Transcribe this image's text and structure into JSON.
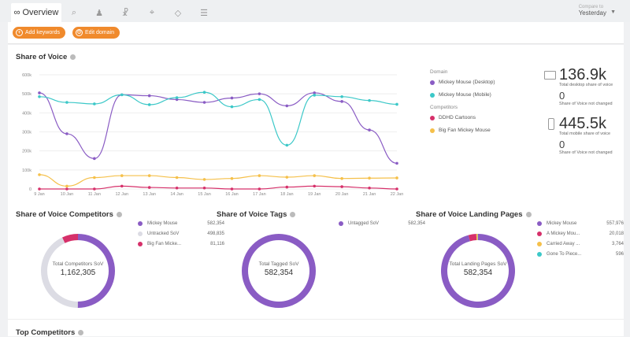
{
  "tabs": [
    {
      "label": "Overview",
      "icon": "binoculars-icon"
    },
    {
      "icon": "search-icon"
    },
    {
      "icon": "chess-pawn-icon"
    },
    {
      "icon": "trophy-icon"
    },
    {
      "icon": "crosshair-icon"
    },
    {
      "icon": "tag-icon"
    },
    {
      "icon": "report-icon"
    }
  ],
  "compare": {
    "label": "Compare to",
    "value": "Yesterday"
  },
  "toolbar": {
    "add_keywords": "Add keywords",
    "edit_domain": "Edit domain"
  },
  "sov": {
    "title": "Share of Voice",
    "legend": {
      "domain_heading": "Domain",
      "competitors_heading": "Competitors"
    },
    "stats": {
      "desktop_value": "136.9k",
      "desktop_label": "Total desktop share of voice",
      "desktop_change": "0",
      "desktop_change_label": "Share of Voice not changed",
      "mobile_value": "445.5k",
      "mobile_label": "Total mobile share of voice",
      "mobile_change": "0",
      "mobile_change_label": "Share of Voice not changed"
    }
  },
  "chart_data": {
    "type": "line",
    "title": "Share of Voice",
    "ylim": [
      0,
      600000
    ],
    "yticks": [
      "0",
      "100k",
      "200k",
      "300k",
      "400k",
      "500k",
      "600k"
    ],
    "categories": [
      "9 Jan",
      "10 Jan",
      "11 Jan",
      "12 Jan",
      "13 Jan",
      "14 Jan",
      "15 Jan",
      "16 Jan",
      "17 Jan",
      "18 Jan",
      "19 Jan",
      "20 Jan",
      "21 Jan",
      "22 Jan"
    ],
    "grid": true,
    "legend_placement": "right",
    "series": [
      {
        "name": "Mickey Mouse (Desktop)",
        "color": "#8a5cc4",
        "values": [
          505000,
          290000,
          160000,
          495000,
          490000,
          470000,
          455000,
          478000,
          500000,
          437000,
          505000,
          460000,
          310000,
          135000
        ]
      },
      {
        "name": "Mickey Mouse (Mobile)",
        "color": "#3cc8c8",
        "values": [
          485000,
          455000,
          447000,
          495000,
          443000,
          480000,
          508000,
          432000,
          470000,
          230000,
          493000,
          485000,
          465000,
          445000
        ]
      },
      {
        "name": "DDHD Cartoons",
        "color": "#d6306a",
        "values": [
          0,
          0,
          0,
          15000,
          8000,
          5000,
          5000,
          0,
          0,
          10000,
          15000,
          12000,
          5000,
          0
        ]
      },
      {
        "name": "Big Fan Mickey Mouse",
        "color": "#f5c04a",
        "values": [
          75000,
          15000,
          60000,
          70000,
          70000,
          60000,
          50000,
          55000,
          70000,
          62000,
          70000,
          55000,
          57000,
          58000
        ]
      }
    ]
  },
  "donuts": [
    {
      "title": "Share of Voice Competitors",
      "center_label": "Total Competitors SoV",
      "center_value": "1,162,305",
      "items": [
        {
          "name": "Mickey Mouse",
          "value": "582,354",
          "v": 582354,
          "color": "#8a5cc4"
        },
        {
          "name": "Untracked SoV",
          "value": "498,835",
          "v": 498835,
          "color": "#dcdce4"
        },
        {
          "name": "Big Fan Micke...",
          "value": "81,116",
          "v": 81116,
          "color": "#d6306a"
        }
      ]
    },
    {
      "title": "Share of Voice Tags",
      "center_label": "Total Tagged SoV",
      "center_value": "582,354",
      "items": [
        {
          "name": "Untagged SoV",
          "value": "582,354",
          "v": 582354,
          "color": "#8a5cc4"
        }
      ]
    },
    {
      "title": "Share of Voice Landing Pages",
      "center_label": "Total Landing Pages SoV",
      "center_value": "582,354",
      "items": [
        {
          "name": "Mickey Mouse",
          "value": "557,976",
          "v": 557976,
          "color": "#8a5cc4"
        },
        {
          "name": "A Mickey Mou...",
          "value": "20,018",
          "v": 20018,
          "color": "#d6306a"
        },
        {
          "name": "Carried Away ...",
          "value": "3,764",
          "v": 3764,
          "color": "#f5c04a"
        },
        {
          "name": "Gone To Piece...",
          "value": "596",
          "v": 596,
          "color": "#3cc8c8"
        }
      ]
    }
  ],
  "top_competitors": {
    "title": "Top Competitors"
  }
}
